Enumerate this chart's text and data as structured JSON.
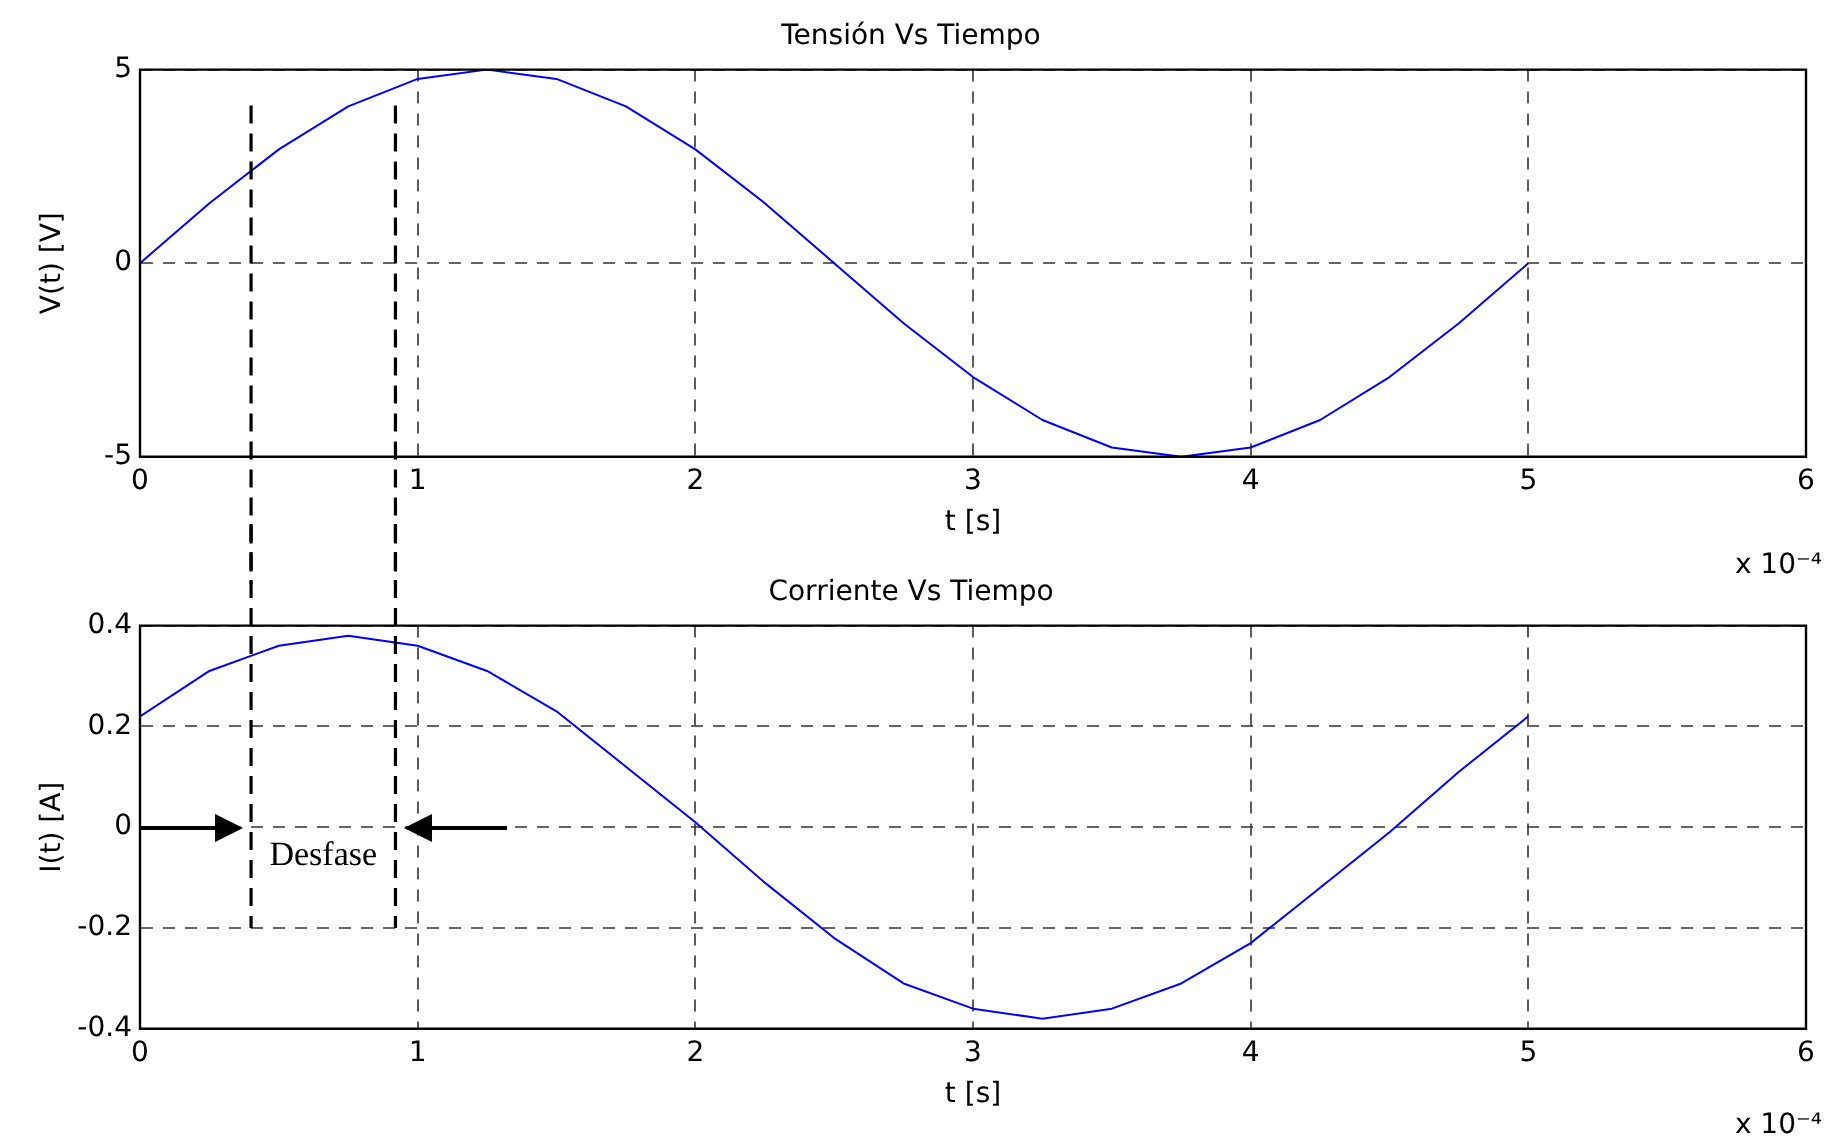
{
  "chart_data": [
    {
      "type": "line",
      "title": "Tensión Vs Tiempo",
      "xlabel": "t [s]",
      "ylabel": "V(t) [V]",
      "annotations": [
        "x 10⁻⁴"
      ],
      "x": [
        0,
        0.25,
        0.5,
        0.75,
        1,
        1.25,
        1.5,
        1.75,
        2,
        2.25,
        2.5,
        2.75,
        3,
        3.25,
        3.5,
        3.75,
        4,
        4.25,
        4.5,
        4.75,
        5
      ],
      "series": [
        {
          "color": "#0000ff",
          "values": [
            0,
            1.55,
            2.94,
            4.05,
            4.76,
            5,
            4.76,
            4.05,
            2.94,
            1.55,
            0,
            -1.55,
            -2.94,
            -4.05,
            -4.76,
            -5,
            -4.76,
            -4.05,
            -2.94,
            -1.55,
            0
          ]
        }
      ],
      "xlim": [
        0,
        6
      ],
      "xticks": [
        0,
        1,
        2,
        3,
        4,
        5,
        6
      ],
      "ylim": [
        -5,
        5
      ],
      "yticks": [
        -5,
        0,
        5
      ],
      "grid": true,
      "legend": false,
      "marker": "none",
      "line_style": "solid",
      "ref_lines": [
        {
          "axis": "x",
          "value": 0.4,
          "color": "#000000",
          "line_style": "dashed"
        },
        {
          "axis": "x",
          "value": 0.92,
          "color": "#000000",
          "line_style": "dashed"
        }
      ]
    },
    {
      "type": "line",
      "title": "Corriente Vs Tiempo",
      "xlabel": "t [s]",
      "ylabel": "I(t) [A]",
      "annotations": [
        "x 10⁻⁴",
        "Desfase"
      ],
      "x": [
        0,
        0.25,
        0.5,
        0.75,
        1,
        1.25,
        1.5,
        1.75,
        2,
        2.25,
        2.5,
        2.75,
        3,
        3.25,
        3.5,
        3.75,
        4,
        4.25,
        4.5,
        4.75,
        5
      ],
      "series": [
        {
          "color": "#0000ff",
          "values": [
            0.22,
            0.31,
            0.36,
            0.38,
            0.36,
            0.31,
            0.23,
            0.12,
            0.01,
            -0.11,
            -0.22,
            -0.31,
            -0.36,
            -0.38,
            -0.36,
            -0.31,
            -0.23,
            -0.12,
            -0.01,
            0.11,
            0.22
          ]
        }
      ],
      "xlim": [
        0,
        6
      ],
      "xticks": [
        0,
        1,
        2,
        3,
        4,
        5,
        6
      ],
      "ylim": [
        -0.4,
        0.4
      ],
      "yticks": [
        -0.4,
        -0.2,
        0,
        0.2,
        0.4
      ],
      "grid": true,
      "legend": false,
      "marker": "none",
      "line_style": "solid",
      "ref_lines": [
        {
          "axis": "x",
          "value": 0.4,
          "color": "#000000",
          "line_style": "dashed"
        },
        {
          "axis": "x",
          "value": 0.92,
          "color": "#000000",
          "line_style": "dashed"
        }
      ]
    }
  ]
}
